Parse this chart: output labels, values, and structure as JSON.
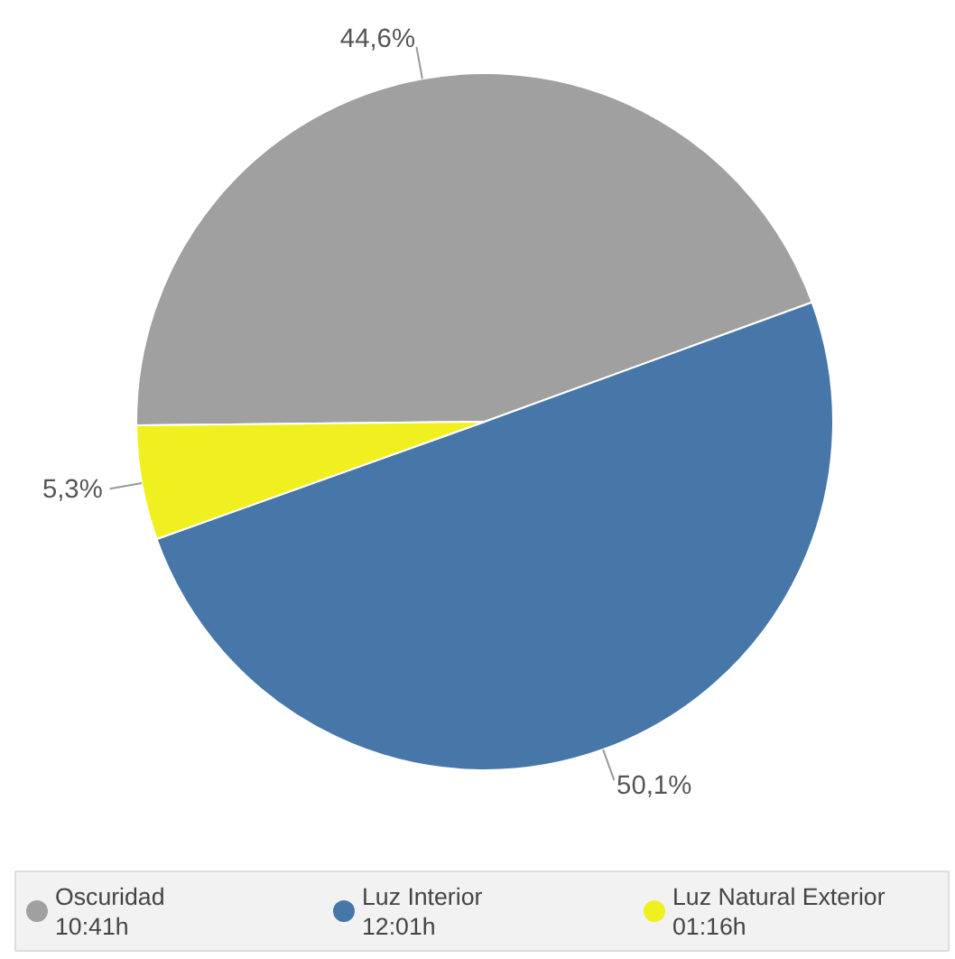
{
  "chart_data": {
    "type": "pie",
    "categories": [
      "Oscuridad\n10:41h",
      "Luz Interior\n12:01h",
      "Luz Natural Exterior\n01:16h"
    ],
    "values": [
      44.6,
      50.1,
      5.3
    ],
    "colors": [
      "#a0a0a0",
      "#4677a8",
      "#f0f020"
    ],
    "value_labels": [
      "44,6%",
      "50,1%",
      "5,3%"
    ],
    "legend": "bottom"
  }
}
